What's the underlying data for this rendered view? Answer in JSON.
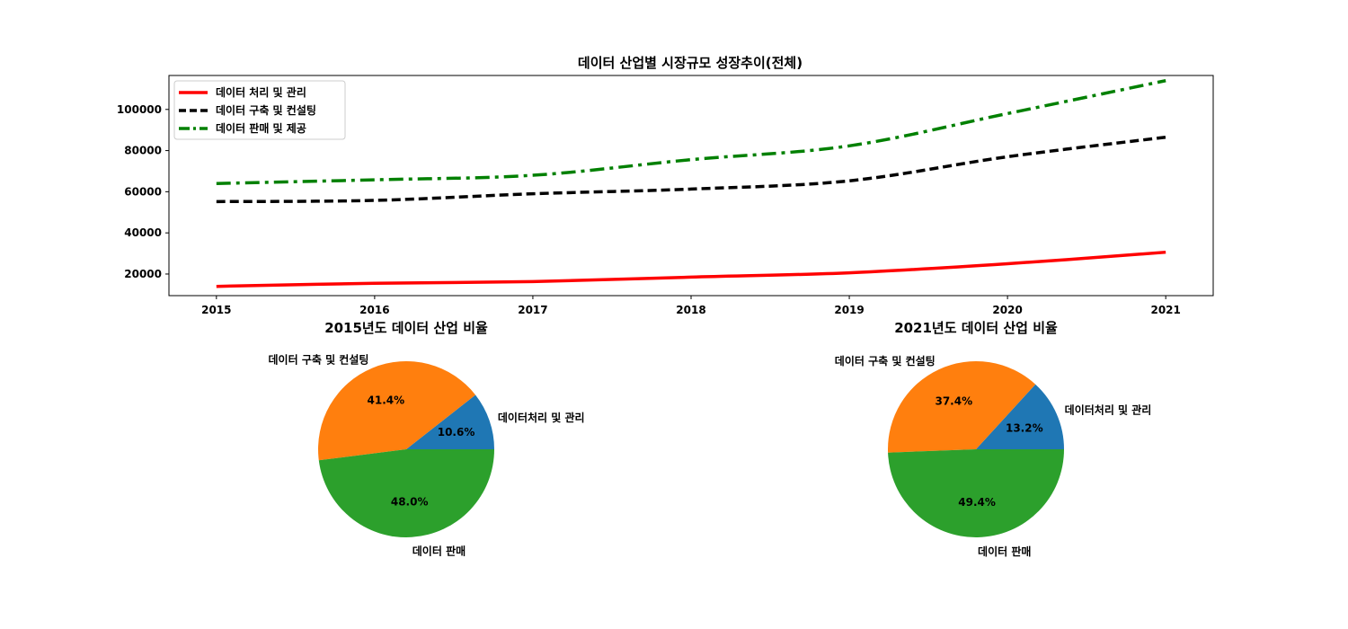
{
  "chart_data": [
    {
      "type": "line",
      "title": "데이터 산업별 시장규모 성장추이(전체)",
      "xlabel": "",
      "ylabel": "",
      "x": [
        "2015",
        "2016",
        "2017",
        "2018",
        "2019",
        "2020",
        "2021"
      ],
      "xlim": [
        2014.7,
        2021.3
      ],
      "ylim": [
        9500,
        116500
      ],
      "yticks": [
        "20000",
        "40000",
        "60000",
        "80000",
        "100000"
      ],
      "grid": false,
      "legend_position": "upper-left",
      "series": [
        {
          "name": "데이터 처리 및 관리",
          "values": [
            14000,
            15500,
            16300,
            18500,
            20600,
            25000,
            30600
          ],
          "color": "#ff0000",
          "style": "solid"
        },
        {
          "name": "데이터 구축 및 컨설팅",
          "values": [
            55200,
            55800,
            59000,
            61300,
            65300,
            77000,
            86500
          ],
          "color": "#000000",
          "style": "dashed"
        },
        {
          "name": "데이터 판매 및 제공",
          "values": [
            64000,
            65800,
            68000,
            75600,
            82300,
            98000,
            114000
          ],
          "color": "#008000",
          "style": "dashdot"
        }
      ]
    },
    {
      "type": "pie",
      "title": "2015년도 데이터 산업 비율",
      "slices": [
        {
          "label": "데이터처리 및 관리",
          "value": 10.6,
          "pct": "10.6%",
          "color": "#1f77b4"
        },
        {
          "label": "데이터 구축 및 컨설팅",
          "value": 41.4,
          "pct": "41.4%",
          "color": "#ff7f0e"
        },
        {
          "label": "데이터 판매",
          "value": 48.0,
          "pct": "48.0%",
          "color": "#2ca02c"
        }
      ]
    },
    {
      "type": "pie",
      "title": "2021년도 데이터 산업 비율",
      "slices": [
        {
          "label": "데이터처리 및 관리",
          "value": 13.2,
          "pct": "13.2%",
          "color": "#1f77b4"
        },
        {
          "label": "데이터 구축 및 컨설팅",
          "value": 37.4,
          "pct": "37.4%",
          "color": "#ff7f0e"
        },
        {
          "label": "데이터 판매",
          "value": 49.4,
          "pct": "49.4%",
          "color": "#2ca02c"
        }
      ]
    }
  ]
}
